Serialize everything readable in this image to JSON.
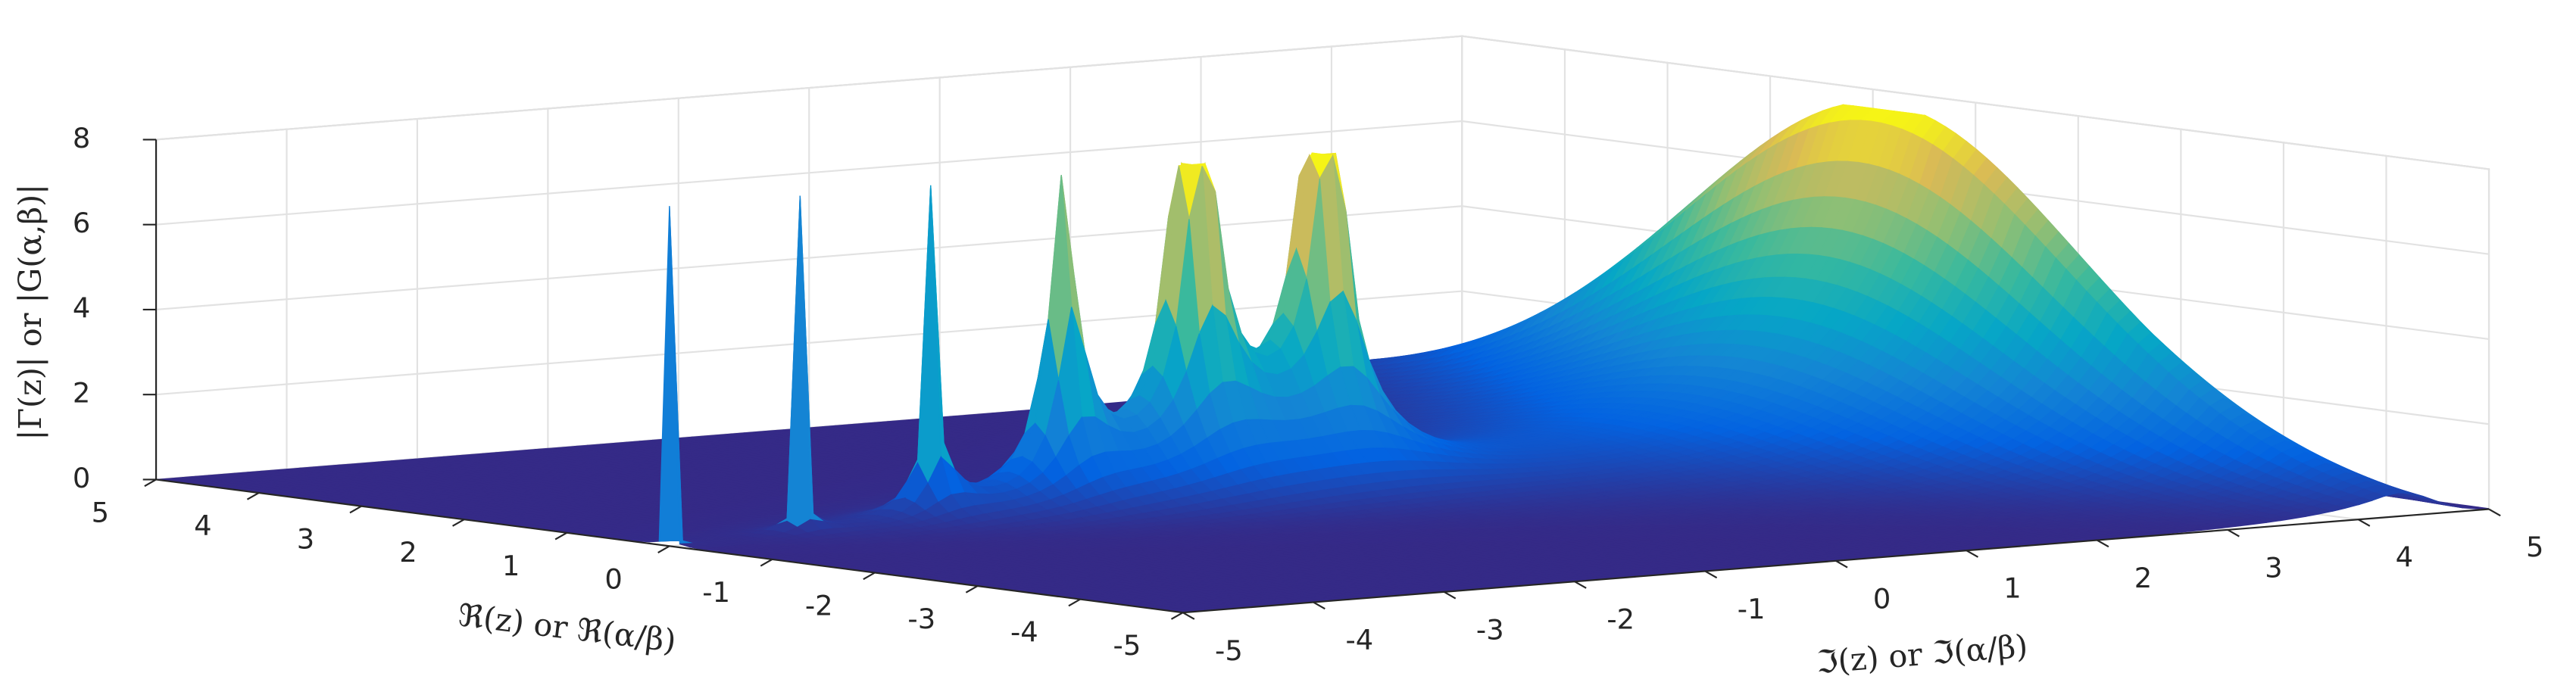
{
  "chart_data": {
    "type": "surface",
    "zlabel": "|Γ(z)| or |G(α,β)|",
    "xlabel": "ℜ(z) or ℜ(α/β)",
    "ylabel": "ℑ(z) or ℑ(α/β)",
    "xlim": [
      -5,
      5
    ],
    "xticks": [
      -5,
      -4,
      -3,
      -2,
      -1,
      0,
      1,
      2,
      3,
      4,
      5
    ],
    "ylim": [
      -5,
      5
    ],
    "yticks": [
      -5,
      -4,
      -3,
      -2,
      -1,
      0,
      1,
      2,
      3,
      4,
      5
    ],
    "zlim": [
      0,
      8
    ],
    "zticks": [
      0,
      2,
      4,
      6,
      8
    ],
    "grid": true,
    "colormap": [
      "#352a87",
      "#0363e1",
      "#1485d4",
      "#06a7c6",
      "#38b99e",
      "#92bf73",
      "#d9ba56",
      "#f9fb0e"
    ]
  }
}
